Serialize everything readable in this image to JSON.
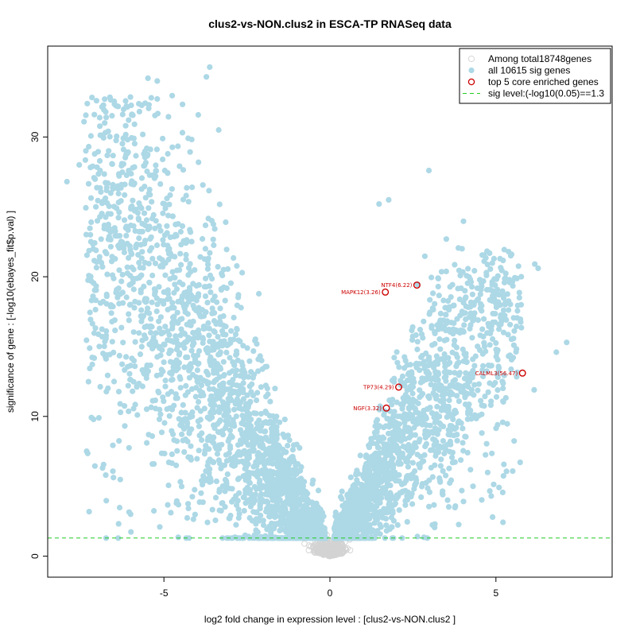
{
  "chart_data": {
    "type": "scatter",
    "title": "clus2-vs-NON.clus2 in ESCA-TP RNASeq data",
    "xlabel": "log2 fold change in expression level : [clus2-vs-NON.clus2 ]",
    "ylabel": "significance of gene : [-log10(ebayes_fit$p.val) ]",
    "xlim": [
      -8.5,
      8.5
    ],
    "ylim": [
      -1.5,
      36.5
    ],
    "x_ticks": [
      -5,
      0,
      5
    ],
    "y_ticks": [
      0,
      10,
      20,
      30
    ],
    "x_tick_labels": [
      "-5",
      "0",
      "5"
    ],
    "y_tick_labels": [
      "0",
      "10",
      "20",
      "30"
    ],
    "sig_line": 1.3,
    "legend_position": "top-right",
    "legend": [
      {
        "label": "Among total18748genes",
        "kind": "open-circle",
        "color": "#d3d3d3"
      },
      {
        "label": "all 10615 sig genes",
        "kind": "filled-circle",
        "color": "#add8e6"
      },
      {
        "label": "top 5 core enriched genes",
        "kind": "open-circle",
        "color": "#cc0000"
      },
      {
        "label": "sig level:(-log10(0.05)==1.3",
        "kind": "dashed-line",
        "color": "#22cc22"
      }
    ],
    "top_genes": [
      {
        "label": "NTF4(6.22)",
        "x": 2.62,
        "y": 19.4
      },
      {
        "label": "MAPK12(3.26)",
        "x": 1.67,
        "y": 18.9
      },
      {
        "label": "TP73(4.29)",
        "x": 2.07,
        "y": 12.1
      },
      {
        "label": "NGF(3.32)",
        "x": 1.7,
        "y": 10.6
      },
      {
        "label": "CALML3(56.47)",
        "x": 5.8,
        "y": 13.1
      }
    ],
    "highlight_points": [
      {
        "x": -7.92,
        "y": 26.8
      },
      {
        "x": -7.55,
        "y": 28.0
      },
      {
        "x": -7.35,
        "y": 29.0
      },
      {
        "x": -7.05,
        "y": 25.0
      },
      {
        "x": -6.85,
        "y": 20.7
      },
      {
        "x": -6.72,
        "y": 18.6
      },
      {
        "x": -6.15,
        "y": 30.8
      },
      {
        "x": -5.48,
        "y": 34.2
      },
      {
        "x": -5.2,
        "y": 34.0
      },
      {
        "x": -5.38,
        "y": 32.8
      },
      {
        "x": -5.45,
        "y": 32.3
      },
      {
        "x": -3.62,
        "y": 35.0
      },
      {
        "x": -3.72,
        "y": 34.3
      },
      {
        "x": -3.35,
        "y": 30.5
      },
      {
        "x": -6.5,
        "y": 12.5
      },
      {
        "x": -4.75,
        "y": 10.5
      },
      {
        "x": 2.98,
        "y": 27.6
      },
      {
        "x": 1.48,
        "y": 25.2
      },
      {
        "x": 1.77,
        "y": 25.5
      },
      {
        "x": 6.17,
        "y": 20.9
      },
      {
        "x": 6.27,
        "y": 20.6
      },
      {
        "x": 7.13,
        "y": 15.3
      },
      {
        "x": 6.82,
        "y": 14.6
      },
      {
        "x": 6.15,
        "y": 11.9
      },
      {
        "x": 5.05,
        "y": 9.4
      }
    ]
  }
}
